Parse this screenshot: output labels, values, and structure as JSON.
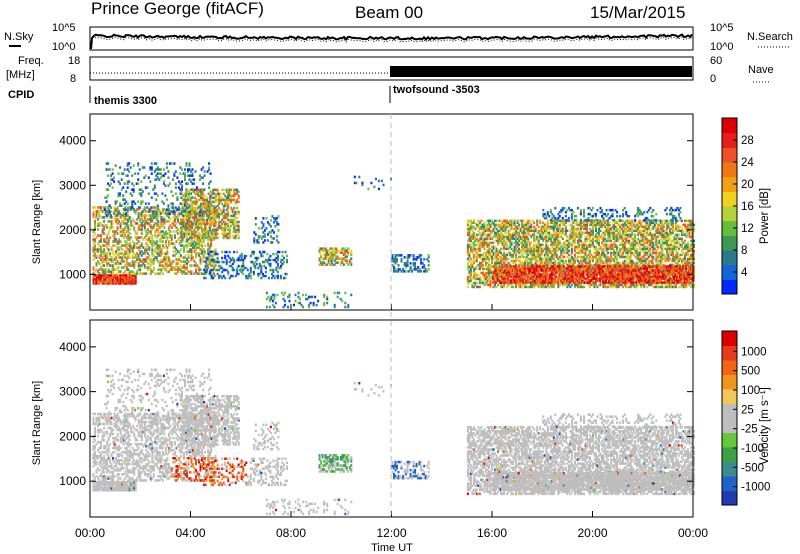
{
  "header": {
    "station": "Prince George (fitACF)",
    "beam": "Beam 00",
    "date": "15/Mar/2015"
  },
  "sky_strip": {
    "left_label": "N.Sky",
    "right_label": "N.Search",
    "left_ticks": [
      "10^5",
      "10^0"
    ],
    "right_ticks": [
      "10^5",
      "10^0"
    ]
  },
  "freq_strip": {
    "left_label_top": "Freq.",
    "left_label_unit": "[MHz]",
    "left_ticks": [
      "18",
      "8"
    ],
    "right_label": "Nave",
    "right_ticks": [
      "60",
      "0"
    ]
  },
  "cpid": {
    "label": "CPID",
    "modes": [
      {
        "name": "themis 3300",
        "start_hour": 0
      },
      {
        "name": "twofsound -3503",
        "start_hour": 12
      }
    ]
  },
  "chart_data": [
    {
      "type": "heatmap",
      "name": "power",
      "ylabel": "Slant Range [km]",
      "ylim": [
        200,
        4600
      ],
      "yticks": [
        "1000",
        "2000",
        "3000",
        "4000"
      ],
      "xlabel": "Time UT",
      "xlim": [
        0,
        24
      ],
      "colorbar_label": "Power [dB]",
      "colorbar_ticks": [
        "4",
        "8",
        "12",
        "16",
        "20",
        "24",
        "28"
      ],
      "colorbar_range": [
        0,
        32
      ],
      "colors": [
        "#0028ff",
        "#1464dc",
        "#287a8c",
        "#3c9a50",
        "#64be3c",
        "#b4d23c",
        "#f0d21e",
        "#f0a014",
        "#f07814",
        "#f05028",
        "#e61e1e",
        "#dc0000"
      ]
    },
    {
      "type": "heatmap",
      "name": "velocity",
      "ylabel": "Slant Range [km]",
      "ylim": [
        200,
        4600
      ],
      "yticks": [
        "1000",
        "2000",
        "3000",
        "4000"
      ],
      "xlabel": "Time UT",
      "xlim": [
        0,
        24
      ],
      "xticks": [
        "00:00",
        "04:00",
        "08:00",
        "12:00",
        "16:00",
        "20:00",
        "00:00"
      ],
      "colorbar_label": "Velocity [m s⁻¹]",
      "colorbar_ticks": [
        "1000",
        "500",
        "100",
        "25",
        "-25",
        "-100",
        "-500",
        "-1000"
      ],
      "colors": [
        "#1e3cb4",
        "#1e64c8",
        "#3c8c8c",
        "#3ca046",
        "#64c83c",
        "#bebebe",
        "#bebebe",
        "#f0c85a",
        "#f0961e",
        "#f06414",
        "#e63c1e",
        "#dc0000"
      ]
    }
  ]
}
